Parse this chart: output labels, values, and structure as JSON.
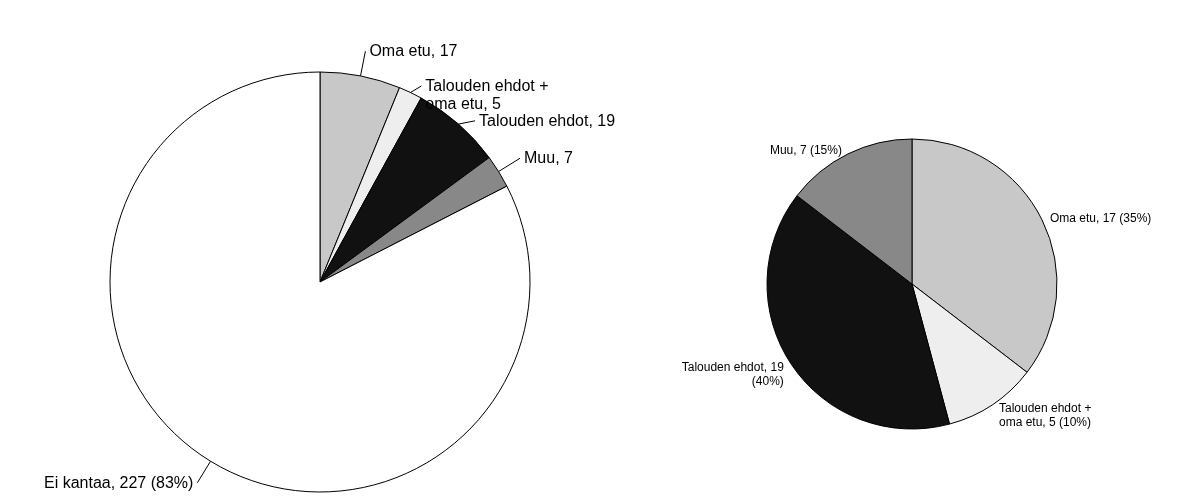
{
  "chart_data": [
    {
      "type": "pie",
      "categories": [
        "Oma etu",
        "Talouden ehdot + oma etu",
        "Talouden ehdot",
        "Muu",
        "Ei kantaa"
      ],
      "values": [
        17,
        5,
        19,
        7,
        227
      ],
      "colors": [
        "#c8c8c8",
        "#eeeeee",
        "#111111",
        "#888888",
        "#ffffff"
      ],
      "value_labels": [
        "17",
        "5",
        "19",
        "7",
        "227 (83%)"
      ]
    },
    {
      "type": "pie",
      "categories": [
        "Oma etu",
        "Talouden ehdot + oma etu",
        "Talouden ehdot",
        "Muu"
      ],
      "values": [
        17,
        5,
        19,
        7
      ],
      "colors": [
        "#c8c8c8",
        "#eeeeee",
        "#111111",
        "#888888"
      ],
      "value_labels": [
        "17 (35%)",
        "5 (10%)",
        "19 (40%)",
        "7 (15%)"
      ]
    }
  ]
}
